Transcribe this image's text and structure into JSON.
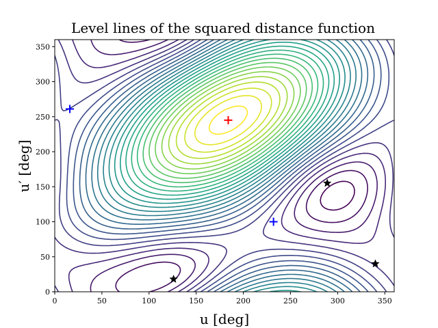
{
  "chart_data": {
    "type": "contour",
    "title": "Level lines of the squared distance function",
    "xlabel": "u [deg]",
    "ylabel": "u′ [deg]",
    "xlim": [
      0,
      360
    ],
    "ylim": [
      0,
      360
    ],
    "xticks": [
      0,
      50,
      100,
      150,
      200,
      250,
      300,
      350
    ],
    "yticks": [
      0,
      50,
      100,
      150,
      200,
      250,
      300,
      350
    ],
    "colormap": "viridis",
    "grid": false,
    "maximum": {
      "x": 184,
      "y": 245,
      "marker": "plus",
      "color": "#ff0000"
    },
    "saddles": [
      {
        "x": 16,
        "y": 261,
        "marker": "plus",
        "color": "#0000ff"
      },
      {
        "x": 232,
        "y": 100,
        "marker": "plus",
        "color": "#0000ff"
      }
    ],
    "minima": [
      {
        "x": 126,
        "y": 18,
        "marker": "star",
        "color": "#000000"
      },
      {
        "x": 289,
        "y": 155,
        "marker": "star",
        "color": "#000000"
      },
      {
        "x": 340,
        "y": 40,
        "marker": "star",
        "color": "#000000"
      }
    ]
  }
}
